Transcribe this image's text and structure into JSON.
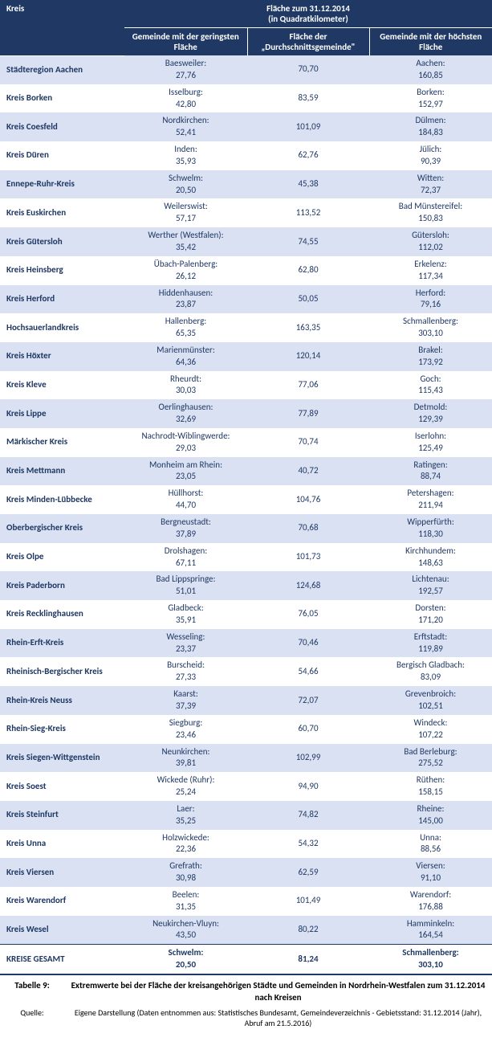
{
  "header": {
    "kreis": "Kreis",
    "main": "Fläche zum 31.12.2014\n(in Quadratkilometer)",
    "min": "Gemeinde mit der geringsten Fläche",
    "avg": "Fläche der „Durchschnittsgemeinde\"",
    "max": "Gemeinde mit der höchsten Fläche"
  },
  "rows": [
    {
      "kreis": "Städteregion Aachen",
      "min_name": "Baesweiler:",
      "min_val": "27,76",
      "avg": "70,70",
      "max_name": "Aachen:",
      "max_val": "160,85"
    },
    {
      "kreis": "Kreis Borken",
      "min_name": "Isselburg:",
      "min_val": "42,80",
      "avg": "83,59",
      "max_name": "Borken:",
      "max_val": "152,97"
    },
    {
      "kreis": "Kreis Coesfeld",
      "min_name": "Nordkirchen:",
      "min_val": "52,41",
      "avg": "101,09",
      "max_name": "Dülmen:",
      "max_val": "184,83"
    },
    {
      "kreis": "Kreis Düren",
      "min_name": "Inden:",
      "min_val": "35,93",
      "avg": "62,76",
      "max_name": "Jülich:",
      "max_val": "90,39"
    },
    {
      "kreis": "Ennepe-Ruhr-Kreis",
      "min_name": "Schwelm:",
      "min_val": "20,50",
      "avg": "45,38",
      "max_name": "Witten:",
      "max_val": "72,37"
    },
    {
      "kreis": "Kreis Euskirchen",
      "min_name": "Weilerswist:",
      "min_val": "57,17",
      "avg": "113,52",
      "max_name": "Bad Münstereifel:",
      "max_val": "150,83"
    },
    {
      "kreis": "Kreis Gütersloh",
      "min_name": "Werther (Westfalen):",
      "min_val": "35,42",
      "avg": "74,55",
      "max_name": "Gütersloh:",
      "max_val": "112,02"
    },
    {
      "kreis": "Kreis Heinsberg",
      "min_name": "Übach-Palenberg:",
      "min_val": "26,12",
      "avg": "62,80",
      "max_name": "Erkelenz:",
      "max_val": "117,34"
    },
    {
      "kreis": "Kreis Herford",
      "min_name": "Hiddenhausen:",
      "min_val": "23,87",
      "avg": "50,05",
      "max_name": "Herford:",
      "max_val": "79,16"
    },
    {
      "kreis": "Hochsauerlandkreis",
      "min_name": "Hallenberg:",
      "min_val": "65,35",
      "avg": "163,35",
      "max_name": "Schmallenberg:",
      "max_val": "303,10"
    },
    {
      "kreis": "Kreis Höxter",
      "min_name": "Marienmünster:",
      "min_val": "64,36",
      "avg": "120,14",
      "max_name": "Brakel:",
      "max_val": "173,92"
    },
    {
      "kreis": "Kreis Kleve",
      "min_name": "Rheurdt:",
      "min_val": "30,03",
      "avg": "77,06",
      "max_name": "Goch:",
      "max_val": "115,43"
    },
    {
      "kreis": "Kreis Lippe",
      "min_name": "Oerlinghausen:",
      "min_val": "32,69",
      "avg": "77,89",
      "max_name": "Detmold:",
      "max_val": "129,39"
    },
    {
      "kreis": "Märkischer Kreis",
      "min_name": "Nachrodt-Wiblingwerde:",
      "min_val": "29,03",
      "avg": "70,74",
      "max_name": "Iserlohn:",
      "max_val": "125,49"
    },
    {
      "kreis": "Kreis Mettmann",
      "min_name": "Monheim am Rhein:",
      "min_val": "23,05",
      "avg": "40,72",
      "max_name": "Ratingen:",
      "max_val": "88,74"
    },
    {
      "kreis": "Kreis Minden-Lübbecke",
      "min_name": "Hüllhorst:",
      "min_val": "44,70",
      "avg": "104,76",
      "max_name": "Petershagen:",
      "max_val": "211,94"
    },
    {
      "kreis": "Oberbergischer Kreis",
      "min_name": "Bergneustadt:",
      "min_val": "37,89",
      "avg": "70,68",
      "max_name": "Wipperfürth:",
      "max_val": "118,30"
    },
    {
      "kreis": "Kreis Olpe",
      "min_name": "Drolshagen:",
      "min_val": "67,11",
      "avg": "101,73",
      "max_name": "Kirchhundem:",
      "max_val": "148,63"
    },
    {
      "kreis": "Kreis Paderborn",
      "min_name": "Bad Lippspringe:",
      "min_val": "51,01",
      "avg": "124,68",
      "max_name": "Lichtenau:",
      "max_val": "192,57"
    },
    {
      "kreis": "Kreis Recklinghausen",
      "min_name": "Gladbeck:",
      "min_val": "35,91",
      "avg": "76,05",
      "max_name": "Dorsten:",
      "max_val": "171,20"
    },
    {
      "kreis": "Rhein-Erft-Kreis",
      "min_name": "Wesseling:",
      "min_val": "23,37",
      "avg": "70,46",
      "max_name": "Erftstadt:",
      "max_val": "119,89"
    },
    {
      "kreis": "Rheinisch-Bergischer Kreis",
      "min_name": "Burscheid:",
      "min_val": "27,33",
      "avg": "54,66",
      "max_name": "Bergisch Gladbach:",
      "max_val": "83,09"
    },
    {
      "kreis": "Rhein-Kreis Neuss",
      "min_name": "Kaarst:",
      "min_val": "37,39",
      "avg": "72,07",
      "max_name": "Grevenbroich:",
      "max_val": "102,51"
    },
    {
      "kreis": "Rhein-Sieg-Kreis",
      "min_name": "Siegburg:",
      "min_val": "23,46",
      "avg": "60,70",
      "max_name": "Windeck:",
      "max_val": "107,22"
    },
    {
      "kreis": "Kreis Siegen-Wittgenstein",
      "min_name": "Neunkirchen:",
      "min_val": "39,81",
      "avg": "102,99",
      "max_name": "Bad Berleburg:",
      "max_val": "275,52"
    },
    {
      "kreis": "Kreis Soest",
      "min_name": "Wickede (Ruhr):",
      "min_val": "25,24",
      "avg": "94,90",
      "max_name": "Rüthen:",
      "max_val": "158,15"
    },
    {
      "kreis": "Kreis Steinfurt",
      "min_name": "Laer:",
      "min_val": "35,25",
      "avg": "74,82",
      "max_name": "Rheine:",
      "max_val": "145,00"
    },
    {
      "kreis": "Kreis Unna",
      "min_name": "Holzwickede:",
      "min_val": "22,36",
      "avg": "54,32",
      "max_name": "Unna:",
      "max_val": "88,56"
    },
    {
      "kreis": "Kreis Viersen",
      "min_name": "Grefrath:",
      "min_val": "30,98",
      "avg": "62,59",
      "max_name": "Viersen:",
      "max_val": "91,10"
    },
    {
      "kreis": "Kreis Warendorf",
      "min_name": "Beelen:",
      "min_val": "31,35",
      "avg": "101,49",
      "max_name": "Warendorf:",
      "max_val": "176,88"
    },
    {
      "kreis": "Kreis Wesel",
      "min_name": "Neukirchen-Vluyn:",
      "min_val": "43,50",
      "avg": "80,22",
      "max_name": "Hamminkeln:",
      "max_val": "164,54"
    }
  ],
  "total": {
    "kreis": "KREISE GESAMT",
    "min_name": "Schwelm:",
    "min_val": "20,50",
    "avg": "81,24",
    "max_name": "Schmallenberg:",
    "max_val": "303,10"
  },
  "caption": {
    "label": "Tabelle 9:",
    "text": "Extremwerte bei der Fläche der kreisangehörigen Städte und Gemeinden in Nordrhein-Westfalen zum 31.12.2014 nach Kreisen"
  },
  "source": {
    "label": "Quelle:",
    "text": "Eigene Darstellung (Daten entnommen aus: Statistisches Bundesamt, Gemeindeverzeichnis - Gebietsstand: 31.12.2014 (Jahr), Abruf am 21.5.2016)"
  },
  "colors": {
    "header_bg": "#1f3864",
    "header_fg": "#ffffff",
    "row_odd_bg": "#d9e1f2",
    "row_even_bg": "#ffffff",
    "text": "#1f3864"
  }
}
